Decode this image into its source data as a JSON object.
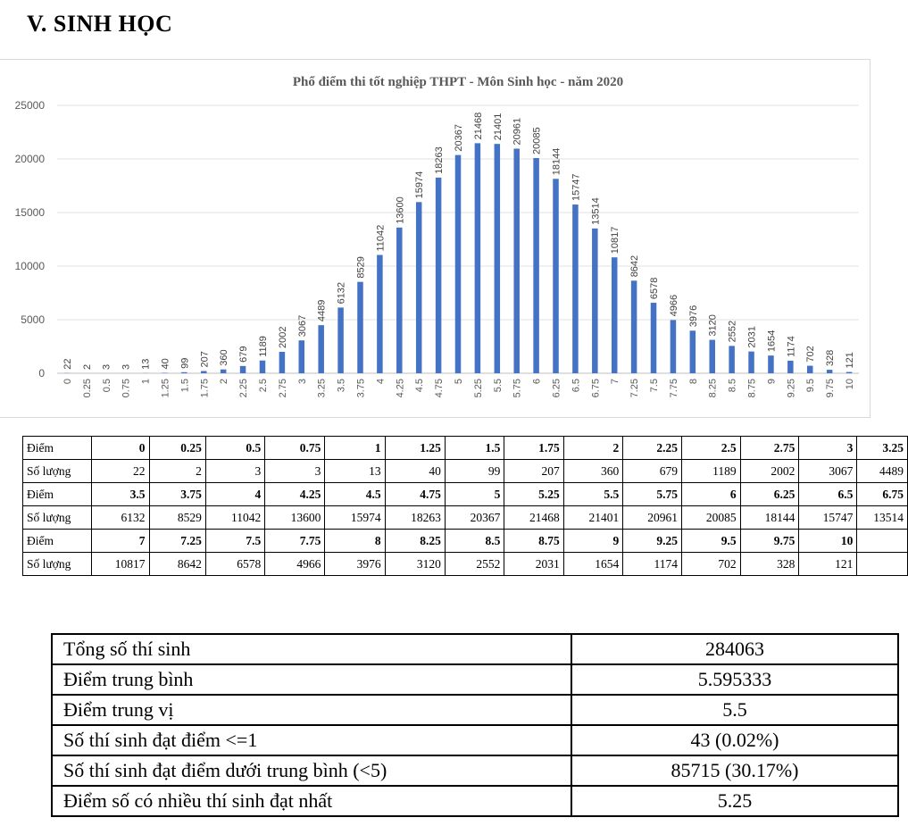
{
  "heading": "V.  SINH HỌC",
  "chart_data": {
    "type": "bar",
    "title": "Phổ điểm thi tốt nghiệp THPT - Môn Sinh học - năm 2020",
    "categories": [
      "0",
      "0.25",
      "0.5",
      "0.75",
      "1",
      "1.25",
      "1.5",
      "1.75",
      "2",
      "2.25",
      "2.5",
      "2.75",
      "3",
      "3.25",
      "3.5",
      "3.75",
      "4",
      "4.25",
      "4.5",
      "4.75",
      "5",
      "5.25",
      "5.5",
      "5.75",
      "6",
      "6.25",
      "6.5",
      "6.75",
      "7",
      "7.25",
      "7.5",
      "7.75",
      "8",
      "8.25",
      "8.5",
      "8.75",
      "9",
      "9.25",
      "9.5",
      "9.75",
      "10"
    ],
    "values": [
      22,
      2,
      3,
      3,
      13,
      40,
      99,
      207,
      360,
      679,
      1189,
      2002,
      3067,
      4489,
      6132,
      8529,
      11042,
      13600,
      15974,
      18263,
      20367,
      21468,
      21401,
      20961,
      20085,
      18144,
      15747,
      13514,
      10817,
      8642,
      6578,
      4966,
      3976,
      3120,
      2552,
      2031,
      1654,
      1174,
      702,
      328,
      121
    ],
    "yticks": [
      "0",
      "5000",
      "10000",
      "15000",
      "20000",
      "25000"
    ],
    "ylim": [
      0,
      25000
    ],
    "grid": true,
    "bar_color": "#4472c4"
  },
  "dist_table": {
    "score_label": "Điểm",
    "count_label": "Số lượng",
    "rows": [
      {
        "scores": [
          "0",
          "0.25",
          "0.5",
          "0.75",
          "1",
          "1.25",
          "1.5",
          "1.75",
          "2",
          "2.25",
          "2.5",
          "2.75",
          "3",
          "3.25"
        ],
        "counts": [
          "22",
          "2",
          "3",
          "3",
          "13",
          "40",
          "99",
          "207",
          "360",
          "679",
          "1189",
          "2002",
          "3067",
          "4489"
        ]
      },
      {
        "scores": [
          "3.5",
          "3.75",
          "4",
          "4.25",
          "4.5",
          "4.75",
          "5",
          "5.25",
          "5.5",
          "5.75",
          "6",
          "6.25",
          "6.5",
          "6.75"
        ],
        "counts": [
          "6132",
          "8529",
          "11042",
          "13600",
          "15974",
          "18263",
          "20367",
          "21468",
          "21401",
          "20961",
          "20085",
          "18144",
          "15747",
          "13514"
        ]
      },
      {
        "scores": [
          "7",
          "7.25",
          "7.5",
          "7.75",
          "8",
          "8.25",
          "8.5",
          "8.75",
          "9",
          "9.25",
          "9.5",
          "9.75",
          "10",
          ""
        ],
        "counts": [
          "10817",
          "8642",
          "6578",
          "4966",
          "3976",
          "3120",
          "2552",
          "2031",
          "1654",
          "1174",
          "702",
          "328",
          "121",
          ""
        ]
      }
    ]
  },
  "stats": [
    {
      "label": "Tổng số thí sinh",
      "value": "284063"
    },
    {
      "label": "Điểm trung bình",
      "value": "5.595333"
    },
    {
      "label": "Điểm trung vị",
      "value": "5.5"
    },
    {
      "label": "Số thí sinh đạt điểm <=1",
      "value": "43 (0.02%)"
    },
    {
      "label": "Số thí sinh đạt điểm dưới trung bình (<5)",
      "value": "85715 (30.17%)"
    },
    {
      "label": "Điểm số có nhiều thí sinh đạt nhất",
      "value": "5.25"
    }
  ]
}
